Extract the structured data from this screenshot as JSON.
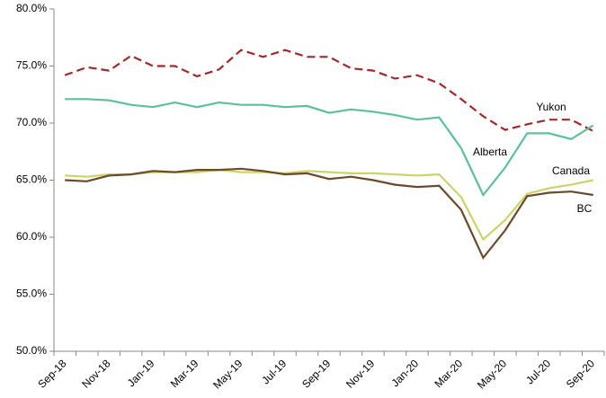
{
  "chart_data": {
    "type": "line",
    "categories": [
      "Sep-18",
      null,
      "Nov-18",
      null,
      "Jan-19",
      null,
      "Mar-19",
      null,
      "May-19",
      null,
      "Jul-19",
      null,
      "Sep-19",
      null,
      "Nov-19",
      null,
      "Jan-20",
      null,
      "Mar-20",
      null,
      "May-20",
      null,
      "Jul-20",
      null,
      "Sep-20"
    ],
    "ylim": [
      50,
      80
    ],
    "yticks": [
      {
        "value": 50,
        "label": "50.0%"
      },
      {
        "value": 55,
        "label": "55.0%"
      },
      {
        "value": 60,
        "label": "60.0%"
      },
      {
        "value": 65,
        "label": "65.0%"
      },
      {
        "value": 70,
        "label": "70.0%"
      },
      {
        "value": 75,
        "label": "75.0%"
      },
      {
        "value": 80,
        "label": "80.0%"
      }
    ],
    "grid": false,
    "series": [
      {
        "name": "Yukon",
        "color": "#9e2a2b",
        "dashed": true,
        "values": [
          74.2,
          74.9,
          74.6,
          75.9,
          75.0,
          75.0,
          74.1,
          74.7,
          76.4,
          75.8,
          76.4,
          75.8,
          75.8,
          74.8,
          74.6,
          73.9,
          74.2,
          73.5,
          72.1,
          70.6,
          69.4,
          69.9,
          70.3,
          70.3,
          69.3
        ]
      },
      {
        "name": "Alberta",
        "color": "#5cbf9f",
        "values": [
          72.1,
          72.1,
          72.0,
          71.6,
          71.4,
          71.8,
          71.4,
          71.8,
          71.6,
          71.6,
          71.4,
          71.5,
          70.9,
          71.2,
          71.0,
          70.7,
          70.3,
          70.5,
          67.8,
          63.7,
          66.1,
          69.1,
          69.1,
          68.6,
          69.8
        ]
      },
      {
        "name": "Canada",
        "color": "#c9d46a",
        "values": [
          65.4,
          65.3,
          65.5,
          65.5,
          65.7,
          65.7,
          65.7,
          65.9,
          65.7,
          65.7,
          65.6,
          65.8,
          65.7,
          65.6,
          65.6,
          65.5,
          65.4,
          65.5,
          63.5,
          59.8,
          61.5,
          63.8,
          64.3,
          64.6,
          65.0
        ]
      },
      {
        "name": "BC",
        "color": "#6b4a2b",
        "values": [
          65.0,
          64.9,
          65.4,
          65.5,
          65.8,
          65.7,
          65.9,
          65.9,
          66.0,
          65.8,
          65.5,
          65.6,
          65.1,
          65.3,
          65.0,
          64.6,
          64.4,
          64.5,
          62.4,
          58.2,
          60.6,
          63.6,
          63.9,
          64.0,
          63.7
        ]
      }
    ]
  }
}
